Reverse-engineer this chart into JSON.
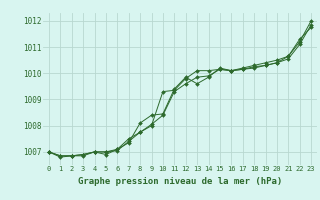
{
  "title": "Graphe pression niveau de la mer (hPa)",
  "x_values": [
    0,
    1,
    2,
    3,
    4,
    5,
    6,
    7,
    8,
    9,
    10,
    11,
    12,
    13,
    14,
    15,
    16,
    17,
    18,
    19,
    20,
    21,
    22,
    23
  ],
  "series1": [
    1007.0,
    1006.8,
    1006.85,
    1006.85,
    1007.0,
    1006.9,
    1007.1,
    1007.35,
    1008.1,
    1008.4,
    1008.45,
    1009.4,
    1009.85,
    1009.6,
    1009.85,
    1010.2,
    1010.1,
    1010.2,
    1010.3,
    1010.4,
    1010.5,
    1010.65,
    1011.2,
    1012.0
  ],
  "series2": [
    1007.0,
    1006.85,
    1006.85,
    1006.9,
    1007.0,
    1007.0,
    1007.1,
    1007.5,
    1007.75,
    1008.05,
    1008.4,
    1009.3,
    1009.6,
    1009.85,
    1009.9,
    1010.15,
    1010.1,
    1010.15,
    1010.25,
    1010.3,
    1010.4,
    1010.55,
    1011.1,
    1011.85
  ],
  "series3": [
    1007.0,
    1006.85,
    1006.85,
    1006.9,
    1007.0,
    1007.0,
    1007.05,
    1007.4,
    1007.75,
    1008.0,
    1009.3,
    1009.35,
    1009.8,
    1010.1,
    1010.1,
    1010.15,
    1010.1,
    1010.15,
    1010.2,
    1010.3,
    1010.4,
    1010.65,
    1011.3,
    1011.75
  ],
  "line_color": "#2d6a2d",
  "markersize": 2.0,
  "bg_color": "#d8f5f0",
  "grid_color": "#b8d8d0",
  "text_color": "#2d6a2d",
  "ylim": [
    1006.5,
    1012.3
  ],
  "yticks": [
    1007,
    1008,
    1009,
    1010,
    1011,
    1012
  ],
  "xlim": [
    -0.5,
    23.5
  ],
  "xticks": [
    0,
    1,
    2,
    3,
    4,
    5,
    6,
    7,
    8,
    9,
    10,
    11,
    12,
    13,
    14,
    15,
    16,
    17,
    18,
    19,
    20,
    21,
    22,
    23
  ]
}
